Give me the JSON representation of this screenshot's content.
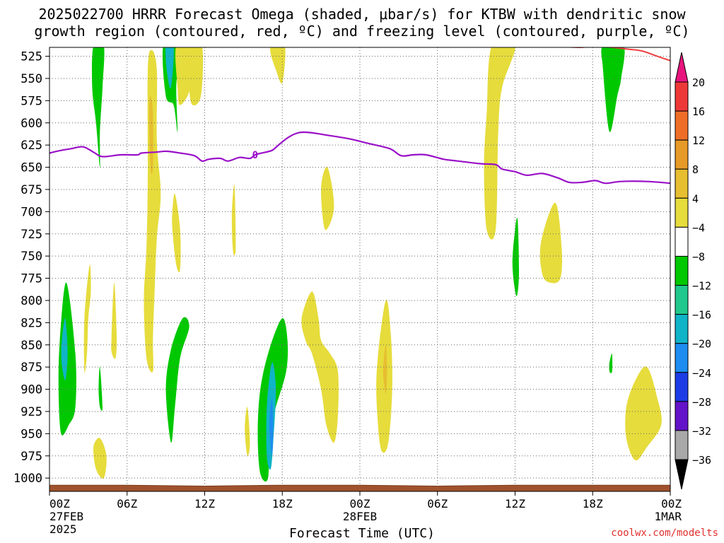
{
  "title_line1": "2025022700 HRRR Forecast Omega (shaded, μbar/s) for KTBW with dendritic snow",
  "title_line2": "growth region (contoured, red, ºC) and freezing level (contoured, purple, ºC)",
  "watermark": "coolwx.com/modelts",
  "colors": {
    "freezing_level": "#9a10c8",
    "dgz": "#ee4040",
    "terrain": "#a0522d"
  },
  "chart_data": {
    "type": "heatmap",
    "xlabel": "Forecast Time (UTC)",
    "x_range_hours": [
      0,
      48
    ],
    "y_levels_hpa": [
      525,
      550,
      575,
      600,
      625,
      650,
      675,
      700,
      725,
      750,
      775,
      800,
      825,
      850,
      875,
      900,
      925,
      950,
      975,
      1000
    ],
    "y_range_hpa": [
      515,
      1015
    ],
    "grid": true,
    "x_ticks": [
      {
        "hour": 0,
        "label": "00Z",
        "sub1": "27FEB",
        "sub2": "2025"
      },
      {
        "hour": 6,
        "label": "06Z",
        "sub1": "",
        "sub2": ""
      },
      {
        "hour": 12,
        "label": "12Z",
        "sub1": "",
        "sub2": ""
      },
      {
        "hour": 18,
        "label": "18Z",
        "sub1": "",
        "sub2": ""
      },
      {
        "hour": 24,
        "label": "00Z",
        "sub1": "28FEB",
        "sub2": ""
      },
      {
        "hour": 30,
        "label": "06Z",
        "sub1": "",
        "sub2": ""
      },
      {
        "hour": 36,
        "label": "12Z",
        "sub1": "",
        "sub2": ""
      },
      {
        "hour": 42,
        "label": "18Z",
        "sub1": "",
        "sub2": ""
      },
      {
        "hour": 48,
        "label": "00Z",
        "sub1": "1MAR",
        "sub2": ""
      }
    ],
    "colorbar": {
      "labels": [
        "20",
        "16",
        "12",
        "8",
        "4",
        "−4",
        "−8",
        "−12",
        "−16",
        "−20",
        "−24",
        "−28",
        "−32",
        "−36"
      ],
      "bins": [
        {
          "color": "#ee3838"
        },
        {
          "color": "#ee6e28"
        },
        {
          "color": "#e69a28"
        },
        {
          "color": "#e6be30"
        },
        {
          "color": "#e6dc3c"
        },
        {
          "color": "#ffffff"
        },
        {
          "color": "#00c800"
        },
        {
          "color": "#20c88c"
        },
        {
          "color": "#10b4c8"
        },
        {
          "color": "#1e8cf0"
        },
        {
          "color": "#1e3ce6"
        },
        {
          "color": "#6414c8"
        },
        {
          "color": "#9a10c8"
        },
        {
          "color": "#a8a8a8"
        }
      ],
      "top_color": "#e8147e",
      "bottom_color": "#000000"
    },
    "freezing_level": {
      "label": "0",
      "label_at": [
        15.9,
        636
      ],
      "points": [
        [
          0,
          634
        ],
        [
          0.9,
          631
        ],
        [
          1.7,
          629
        ],
        [
          2.6,
          627
        ],
        [
          3.4,
          633
        ],
        [
          4.1,
          638
        ],
        [
          5.5,
          636
        ],
        [
          6.8,
          636
        ],
        [
          7.1,
          634
        ],
        [
          8.2,
          633
        ],
        [
          9.1,
          632
        ],
        [
          10.1,
          634
        ],
        [
          11.2,
          637
        ],
        [
          11.8,
          643
        ],
        [
          12.3,
          641
        ],
        [
          13.2,
          640
        ],
        [
          13.8,
          643
        ],
        [
          14.7,
          639
        ],
        [
          15.5,
          640
        ],
        [
          15.9,
          636
        ],
        [
          16.4,
          634
        ],
        [
          17.2,
          631
        ],
        [
          17.7,
          625
        ],
        [
          18.5,
          616
        ],
        [
          19.3,
          611
        ],
        [
          20.2,
          611
        ],
        [
          21.5,
          614
        ],
        [
          23.2,
          618
        ],
        [
          24.6,
          623
        ],
        [
          26.3,
          629
        ],
        [
          27.2,
          637
        ],
        [
          28.1,
          636
        ],
        [
          29.1,
          636
        ],
        [
          30.5,
          641
        ],
        [
          31.6,
          643
        ],
        [
          33.3,
          646
        ],
        [
          34.5,
          647
        ],
        [
          35.0,
          652
        ],
        [
          36.0,
          655
        ],
        [
          36.9,
          659
        ],
        [
          38.1,
          657
        ],
        [
          39.3,
          662
        ],
        [
          40.2,
          667
        ],
        [
          41.2,
          667
        ],
        [
          42.2,
          665
        ],
        [
          43.0,
          668
        ],
        [
          44.2,
          666
        ],
        [
          46.2,
          666
        ],
        [
          48.0,
          668
        ]
      ]
    },
    "dgz": [
      {
        "points": [
          [
            38.2,
            513
          ],
          [
            39.5,
            514
          ],
          [
            41.0,
            515
          ],
          [
            42.0,
            514
          ],
          [
            43.5,
            515
          ],
          [
            44.7,
            517
          ],
          [
            45.8,
            519
          ],
          [
            47.0,
            525
          ],
          [
            48.0,
            530
          ]
        ]
      }
    ],
    "terrain": {
      "top": [
        [
          0,
          1008
        ],
        [
          6,
          1008
        ],
        [
          12,
          1009
        ],
        [
          18,
          1008
        ],
        [
          24,
          1008
        ],
        [
          30,
          1009
        ],
        [
          36,
          1008
        ],
        [
          42,
          1008
        ],
        [
          48,
          1008
        ]
      ]
    },
    "omega_regions": [
      {
        "value": -6,
        "points": [
          [
            3.4,
            513
          ],
          [
            4.2,
            513
          ],
          [
            4.1,
            560
          ],
          [
            3.9,
            610
          ],
          [
            3.9,
            650
          ],
          [
            3.6,
            600
          ],
          [
            3.3,
            560
          ]
        ]
      },
      {
        "value": 6,
        "points": [
          [
            7.6,
            540
          ],
          [
            7.9,
            518
          ],
          [
            8.3,
            540
          ],
          [
            8.3,
            620
          ],
          [
            8.6,
            680
          ],
          [
            8.3,
            730
          ],
          [
            8.1,
            800
          ],
          [
            8.0,
            845
          ],
          [
            8.0,
            880
          ],
          [
            7.5,
            865
          ],
          [
            7.3,
            800
          ],
          [
            7.5,
            740
          ],
          [
            7.6,
            660
          ]
        ]
      },
      {
        "value": 10,
        "points": [
          [
            7.7,
            590
          ],
          [
            7.8,
            570
          ],
          [
            8.0,
            590
          ],
          [
            8.0,
            650
          ],
          [
            7.8,
            650
          ]
        ]
      },
      {
        "value": -6,
        "points": [
          [
            8.8,
            513
          ],
          [
            10.0,
            513
          ],
          [
            9.8,
            560
          ],
          [
            9.9,
            610
          ],
          [
            9.6,
            580
          ],
          [
            9.0,
            570
          ]
        ]
      },
      {
        "value": -14,
        "points": [
          [
            9.0,
            513
          ],
          [
            9.6,
            513
          ],
          [
            9.4,
            560
          ],
          [
            9.1,
            545
          ]
        ]
      },
      {
        "value": 6,
        "points": [
          [
            9.8,
            513
          ],
          [
            11.0,
            513
          ],
          [
            10.9,
            560
          ],
          [
            10.1,
            580
          ],
          [
            9.9,
            560
          ]
        ]
      },
      {
        "value": 6,
        "points": [
          [
            10.9,
            513
          ],
          [
            11.8,
            513
          ],
          [
            11.7,
            570
          ],
          [
            10.9,
            575
          ]
        ]
      },
      {
        "value": 6,
        "points": [
          [
            9.5,
            700
          ],
          [
            9.7,
            680
          ],
          [
            10.1,
            720
          ],
          [
            10.1,
            765
          ],
          [
            9.8,
            760
          ],
          [
            9.5,
            720
          ]
        ]
      },
      {
        "value": 6,
        "points": [
          [
            17.2,
            513
          ],
          [
            18.2,
            513
          ],
          [
            18.0,
            555
          ],
          [
            17.5,
            540
          ],
          [
            17.1,
            522
          ]
        ]
      },
      {
        "value": 6,
        "points": [
          [
            14.1,
            705
          ],
          [
            14.3,
            670
          ],
          [
            14.4,
            740
          ],
          [
            14.2,
            745
          ]
        ]
      },
      {
        "value": 6,
        "points": [
          [
            21.0,
            673
          ],
          [
            21.5,
            650
          ],
          [
            22.0,
            695
          ],
          [
            21.3,
            720
          ]
        ]
      },
      {
        "value": 6,
        "points": [
          [
            34.2,
            513
          ],
          [
            36.0,
            513
          ],
          [
            35.0,
            560
          ],
          [
            34.7,
            610
          ],
          [
            34.5,
            720
          ],
          [
            33.8,
            720
          ],
          [
            33.6,
            650
          ],
          [
            33.8,
            590
          ]
        ]
      },
      {
        "value": -6,
        "points": [
          [
            36.0,
            720
          ],
          [
            36.2,
            710
          ],
          [
            36.3,
            770
          ],
          [
            36.1,
            795
          ],
          [
            35.8,
            760
          ]
        ]
      },
      {
        "value": 6,
        "points": [
          [
            38.0,
            735
          ],
          [
            39.1,
            690
          ],
          [
            39.6,
            740
          ],
          [
            39.5,
            775
          ],
          [
            38.7,
            780
          ],
          [
            38.1,
            770
          ]
        ]
      },
      {
        "value": -6,
        "points": [
          [
            42.8,
            513
          ],
          [
            44.4,
            513
          ],
          [
            44.2,
            550
          ],
          [
            43.9,
            570
          ],
          [
            43.3,
            610
          ],
          [
            42.8,
            540
          ]
        ]
      },
      {
        "value": 6,
        "points": [
          [
            2.7,
            820
          ],
          [
            3.1,
            760
          ],
          [
            3.2,
            790
          ],
          [
            3.0,
            820
          ],
          [
            2.9,
            860
          ],
          [
            2.7,
            880
          ]
        ]
      },
      {
        "value": 6,
        "points": [
          [
            4.8,
            840
          ],
          [
            5.0,
            780
          ],
          [
            5.2,
            840
          ],
          [
            5.1,
            865
          ],
          [
            4.8,
            858
          ]
        ]
      },
      {
        "value": -6,
        "points": [
          [
            3.8,
            900
          ],
          [
            3.9,
            875
          ],
          [
            4.1,
            920
          ],
          [
            3.9,
            920
          ]
        ]
      },
      {
        "value": -6,
        "points": [
          [
            0.8,
            845
          ],
          [
            1.3,
            780
          ],
          [
            2.0,
            860
          ],
          [
            2.0,
            920
          ],
          [
            1.5,
            940
          ],
          [
            0.9,
            950
          ],
          [
            0.7,
            900
          ]
        ]
      },
      {
        "value": -14,
        "points": [
          [
            0.9,
            860
          ],
          [
            1.2,
            820
          ],
          [
            1.4,
            860
          ],
          [
            1.2,
            890
          ]
        ]
      },
      {
        "value": 6,
        "points": [
          [
            3.4,
            965
          ],
          [
            3.9,
            955
          ],
          [
            4.4,
            975
          ],
          [
            4.2,
            1000
          ],
          [
            3.6,
            990
          ]
        ]
      },
      {
        "value": -6,
        "points": [
          [
            9.0,
            900
          ],
          [
            9.4,
            855
          ],
          [
            10.3,
            820
          ],
          [
            10.8,
            830
          ],
          [
            10.1,
            865
          ],
          [
            9.7,
            920
          ],
          [
            9.4,
            960
          ]
        ]
      },
      {
        "value": 6,
        "points": [
          [
            15.1,
            945
          ],
          [
            15.3,
            920
          ],
          [
            15.5,
            960
          ],
          [
            15.3,
            975
          ]
        ]
      },
      {
        "value": -6,
        "points": [
          [
            16.3,
            900
          ],
          [
            17.0,
            855
          ],
          [
            18.0,
            820
          ],
          [
            18.4,
            845
          ],
          [
            18.3,
            880
          ],
          [
            17.5,
            920
          ],
          [
            17.0,
            950
          ],
          [
            16.9,
            1000
          ],
          [
            16.3,
            995
          ],
          [
            16.1,
            950
          ]
        ]
      },
      {
        "value": -12,
        "points": [
          [
            16.8,
            920
          ],
          [
            17.2,
            870
          ],
          [
            17.5,
            900
          ],
          [
            17.3,
            960
          ],
          [
            17.1,
            990
          ],
          [
            16.8,
            975
          ]
        ]
      },
      {
        "value": -18,
        "points": [
          [
            17.0,
            940
          ],
          [
            17.2,
            910
          ],
          [
            17.3,
            945
          ],
          [
            17.2,
            975
          ]
        ]
      },
      {
        "value": 6,
        "points": [
          [
            19.5,
            820
          ],
          [
            20.3,
            790
          ],
          [
            20.8,
            820
          ],
          [
            21.0,
            845
          ],
          [
            21.7,
            860
          ],
          [
            22.3,
            880
          ],
          [
            22.3,
            930
          ],
          [
            22.0,
            960
          ],
          [
            21.4,
            940
          ],
          [
            21.0,
            900
          ],
          [
            20.3,
            860
          ],
          [
            19.8,
            845
          ]
        ]
      },
      {
        "value": 6,
        "points": [
          [
            25.3,
            880
          ],
          [
            26.0,
            800
          ],
          [
            26.4,
            840
          ],
          [
            26.5,
            900
          ],
          [
            26.2,
            960
          ],
          [
            25.7,
            970
          ],
          [
            25.4,
            940
          ]
        ]
      },
      {
        "value": 10,
        "points": [
          [
            25.8,
            880
          ],
          [
            26.0,
            850
          ],
          [
            26.1,
            880
          ],
          [
            26.0,
            905
          ]
        ]
      },
      {
        "value": -6,
        "points": [
          [
            43.3,
            870
          ],
          [
            43.5,
            860
          ],
          [
            43.5,
            880
          ],
          [
            43.3,
            880
          ]
        ]
      },
      {
        "value": 6,
        "points": [
          [
            44.6,
            920
          ],
          [
            45.3,
            890
          ],
          [
            46.2,
            875
          ],
          [
            47.0,
            910
          ],
          [
            47.3,
            940
          ],
          [
            46.2,
            965
          ],
          [
            45.3,
            980
          ],
          [
            44.6,
            955
          ]
        ]
      }
    ]
  }
}
